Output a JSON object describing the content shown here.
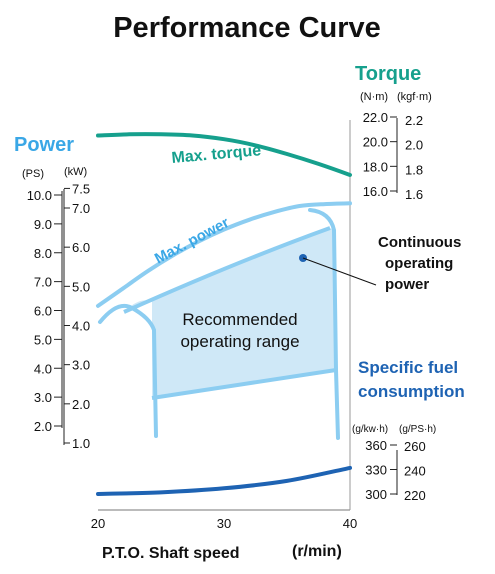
{
  "colors": {
    "torque": "#16a08d",
    "power": "#3aa7e6",
    "power_fill": "#cfe8f7",
    "power_band": "#8ccdf1",
    "fuel": "#1e63b3",
    "text": "#111111"
  },
  "chart_data": {
    "type": "line",
    "title": "Performance Curve",
    "xlabel": "P.T.O. Shaft speed",
    "xunit": "(r/min)",
    "xlim": [
      20,
      40
    ],
    "xticks": [
      "20",
      "30",
      "40"
    ],
    "axes": {
      "power": {
        "label": "Power",
        "unit_ps": "(PS)",
        "unit_kw": "(kW)",
        "ticks_ps": [
          "10.0",
          "9.0",
          "8.0",
          "7.0",
          "6.0",
          "5.0",
          "4.0",
          "3.0",
          "2.0"
        ],
        "ticks_kw": [
          "7.5",
          "7.0",
          "6.0",
          "5.0",
          "4.0",
          "3.0",
          "2.0",
          "1.0"
        ]
      },
      "torque": {
        "label": "Torque",
        "unit_nm": "(N·m)",
        "unit_kgfm": "(kgf·m)",
        "ticks_nm": [
          "22.0",
          "20.0",
          "18.0",
          "16.0"
        ],
        "ticks_kgfm": [
          "2.2",
          "2.0",
          "1.8",
          "1.6"
        ]
      },
      "fuel": {
        "label_line1": "Specific fuel",
        "label_line2": "consumption",
        "unit_kwh": "(g/kw·h)",
        "unit_psh": "(g/PS·h)",
        "ticks_kwh": [
          "360",
          "330",
          "300"
        ],
        "ticks_psh": [
          "260",
          "240",
          "220"
        ]
      }
    },
    "series": [
      {
        "name": "Max. torque",
        "axis": "torque_nm",
        "x": [
          20,
          22.5,
          25,
          27.5,
          30,
          32.5,
          35,
          37.5,
          40
        ],
        "values": [
          20.5,
          20.6,
          20.6,
          20.5,
          20.2,
          19.7,
          19.0,
          18.2,
          17.3
        ]
      },
      {
        "name": "Max. power",
        "axis": "power_kw",
        "x": [
          20,
          22,
          24,
          26,
          28,
          30,
          32,
          34,
          36,
          38,
          40
        ],
        "values": [
          4.5,
          4.95,
          5.4,
          5.8,
          6.15,
          6.45,
          6.7,
          6.9,
          7.05,
          7.1,
          7.12
        ]
      },
      {
        "name": "Specific fuel consumption",
        "axis": "fuel_gkwh",
        "x": [
          20,
          25,
          30,
          35,
          40
        ],
        "values": [
          300,
          302,
          307,
          316,
          332
        ]
      }
    ],
    "annotations": {
      "continuous_line1": "Continuous",
      "continuous_line2": "operating",
      "continuous_line3": "power",
      "range_line1": "Recommended",
      "range_line2": "operating range"
    }
  }
}
